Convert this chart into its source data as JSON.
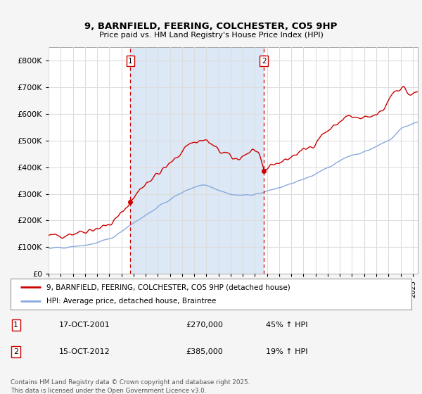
{
  "title": "9, BARNFIELD, FEERING, COLCHESTER, CO5 9HP",
  "subtitle": "Price paid vs. HM Land Registry's House Price Index (HPI)",
  "background_color": "#f5f5f5",
  "plot_bg_color": "#ffffff",
  "shade_color": "#dce8f5",
  "grid_color": "#dddddd",
  "line1_color": "#cc0000",
  "line2_color": "#88aadd",
  "vline_color": "#cc0000",
  "legend1": "9, BARNFIELD, FEERING, COLCHESTER, CO5 9HP (detached house)",
  "legend2": "HPI: Average price, detached house, Braintree",
  "annotation1_num": "1",
  "annotation1_date": "17-OCT-2001",
  "annotation1_price": "£270,000",
  "annotation1_hpi": "45% ↑ HPI",
  "annotation2_num": "2",
  "annotation2_date": "15-OCT-2012",
  "annotation2_price": "£385,000",
  "annotation2_hpi": "19% ↑ HPI",
  "footer": "Contains HM Land Registry data © Crown copyright and database right 2025.\nThis data is licensed under the Open Government Licence v3.0.",
  "ylim_max": 850000,
  "start_year": 1995,
  "end_year": 2025,
  "marker1_month": 81,
  "marker2_month": 213
}
